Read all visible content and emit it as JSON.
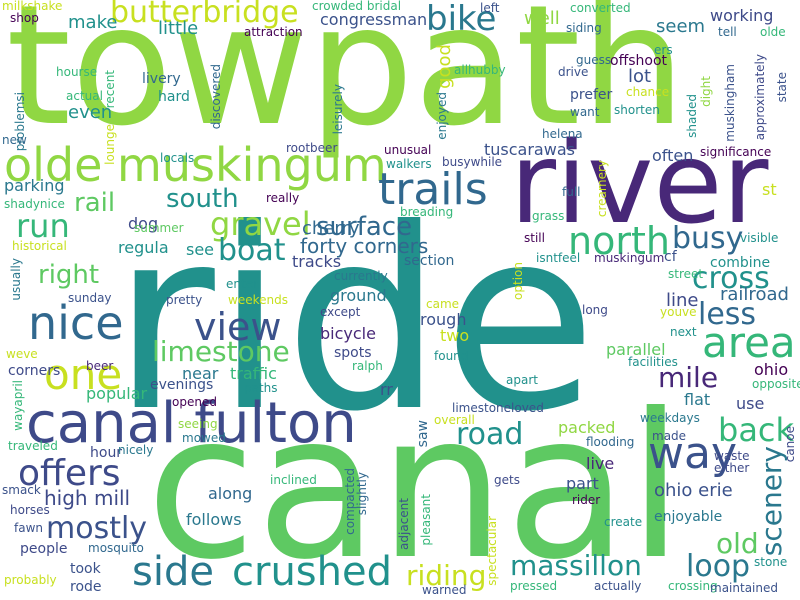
{
  "palette": {
    "purple": "#440154",
    "indigo": "#3b528b",
    "blue": "#31688e",
    "teal": "#21918c",
    "green": "#35b779",
    "lime": "#90d743",
    "yellow": "#c8e020"
  },
  "words": [
    {
      "text": "towpath",
      "color": "#90d743",
      "vertical": false
    },
    {
      "text": "ride",
      "color": "#21918c",
      "vertical": false
    },
    {
      "text": "canal",
      "color": "#5ec962",
      "vertical": false
    },
    {
      "text": "river",
      "color": "#482878",
      "vertical": false
    },
    {
      "text": "canal fulton",
      "color": "#3e4a89",
      "vertical": false
    },
    {
      "text": "olde muskingum",
      "color": "#90d743",
      "vertical": false
    },
    {
      "text": "trails",
      "color": "#31688e",
      "vertical": false
    },
    {
      "text": "butterbridge",
      "color": "#c8e020",
      "vertical": false
    },
    {
      "text": "bike",
      "color": "#2a788e",
      "vertical": false
    },
    {
      "text": "north",
      "color": "#35b779",
      "vertical": false
    },
    {
      "text": "nice",
      "color": "#31688e",
      "vertical": false
    },
    {
      "text": "view",
      "color": "#3b528b",
      "vertical": false
    },
    {
      "text": "area",
      "color": "#35b779",
      "vertical": false
    },
    {
      "text": "one",
      "color": "#c8e020",
      "vertical": false
    },
    {
      "text": "way",
      "color": "#3b528b",
      "vertical": false
    },
    {
      "text": "offers",
      "color": "#3e4a89",
      "vertical": false
    },
    {
      "text": "side",
      "color": "#2a788e",
      "vertical": false
    },
    {
      "text": "crushed",
      "color": "#21918c",
      "vertical": false
    },
    {
      "text": "back",
      "color": "#35b779",
      "vertical": false
    },
    {
      "text": "gravel",
      "color": "#90d743",
      "vertical": false
    },
    {
      "text": "south",
      "color": "#21918c",
      "vertical": false
    },
    {
      "text": "run",
      "color": "#35b779",
      "vertical": false
    },
    {
      "text": "rail",
      "color": "#5ec962",
      "vertical": false
    },
    {
      "text": "right",
      "color": "#5ec962",
      "vertical": false
    },
    {
      "text": "boat",
      "color": "#21918c",
      "vertical": false
    },
    {
      "text": "surface",
      "color": "#31688e",
      "vertical": false
    },
    {
      "text": "busy",
      "color": "#31688e",
      "vertical": false
    },
    {
      "text": "cross",
      "color": "#21918c",
      "vertical": false
    },
    {
      "text": "limestone",
      "color": "#5ec962",
      "vertical": false
    },
    {
      "text": "less",
      "color": "#31688e",
      "vertical": false
    },
    {
      "text": "mile",
      "color": "#482878",
      "vertical": false
    },
    {
      "text": "mostly",
      "color": "#3b528b",
      "vertical": false
    },
    {
      "text": "loop",
      "color": "#2a788e",
      "vertical": false
    },
    {
      "text": "road",
      "color": "#21918c",
      "vertical": false
    },
    {
      "text": "massillon",
      "color": "#21918c",
      "vertical": false
    },
    {
      "text": "riding",
      "color": "#c8e020",
      "vertical": false
    },
    {
      "text": "old",
      "color": "#5ec962",
      "vertical": false
    },
    {
      "text": "scenery",
      "color": "#2a788e",
      "vertical": true
    },
    {
      "text": "high mill",
      "color": "#3e4a89",
      "vertical": false
    },
    {
      "text": "forty corners",
      "color": "#31688e",
      "vertical": false
    },
    {
      "text": "ohio erie",
      "color": "#3b528b",
      "vertical": false
    },
    {
      "text": "cherry",
      "color": "#31688e",
      "vertical": false
    },
    {
      "text": "railroad",
      "color": "#31688e",
      "vertical": false
    },
    {
      "text": "tuscarawas",
      "color": "#3b528b",
      "vertical": false
    },
    {
      "text": "congressman",
      "color": "#3b528b",
      "vertical": false
    },
    {
      "text": "working",
      "color": "#3e4a89",
      "vertical": false
    },
    {
      "text": "offshoot",
      "color": "#440154",
      "vertical": false
    },
    {
      "text": "seem",
      "color": "#2a788e",
      "vertical": false
    },
    {
      "text": "often",
      "color": "#3b528b",
      "vertical": false
    },
    {
      "text": "lot",
      "color": "#3b528b",
      "vertical": false
    },
    {
      "text": "good",
      "color": "#c8e020",
      "vertical": true
    },
    {
      "text": "well",
      "color": "#90d743",
      "vertical": false
    },
    {
      "text": "little",
      "color": "#21918c",
      "vertical": false
    },
    {
      "text": "make",
      "color": "#21918c",
      "vertical": false
    },
    {
      "text": "even",
      "color": "#21918c",
      "vertical": false
    },
    {
      "text": "parking",
      "color": "#2a788e",
      "vertical": false
    },
    {
      "text": "dog",
      "color": "#3e4a89",
      "vertical": false
    },
    {
      "text": "regula",
      "color": "#21918c",
      "vertical": false
    },
    {
      "text": "see",
      "color": "#21918c",
      "vertical": false
    },
    {
      "text": "tracks",
      "color": "#3e4a89",
      "vertical": false
    },
    {
      "text": "section",
      "color": "#31688e",
      "vertical": false
    },
    {
      "text": "ground",
      "color": "#2a788e",
      "vertical": false
    },
    {
      "text": "rough",
      "color": "#3b528b",
      "vertical": false
    },
    {
      "text": "two",
      "color": "#c8e020",
      "vertical": false
    },
    {
      "text": "line",
      "color": "#3e4a89",
      "vertical": false
    },
    {
      "text": "parallel",
      "color": "#5ec962",
      "vertical": false
    },
    {
      "text": "ohio",
      "color": "#440154",
      "vertical": false
    },
    {
      "text": "flat",
      "color": "#2a788e",
      "vertical": false
    },
    {
      "text": "use",
      "color": "#3e4a89",
      "vertical": false
    },
    {
      "text": "live",
      "color": "#482878",
      "vertical": false
    },
    {
      "text": "part",
      "color": "#3b528b",
      "vertical": false
    },
    {
      "text": "packed",
      "color": "#90d743",
      "vertical": false
    },
    {
      "text": "along",
      "color": "#31688e",
      "vertical": false
    },
    {
      "text": "follows",
      "color": "#2a788e",
      "vertical": false
    },
    {
      "text": "people",
      "color": "#3e4a89",
      "vertical": false
    },
    {
      "text": "took",
      "color": "#3b528b",
      "vertical": false
    },
    {
      "text": "rode",
      "color": "#3b528b",
      "vertical": false
    },
    {
      "text": "hour",
      "color": "#3e4a89",
      "vertical": false
    },
    {
      "text": "enjoyable",
      "color": "#2a788e",
      "vertical": false
    },
    {
      "text": "bicycle",
      "color": "#482878",
      "vertical": false
    },
    {
      "text": "near",
      "color": "#2a788e",
      "vertical": false
    },
    {
      "text": "traffic",
      "color": "#35b779",
      "vertical": false
    },
    {
      "text": "popular",
      "color": "#35b779",
      "vertical": false
    },
    {
      "text": "evenings",
      "color": "#3b528b",
      "vertical": false
    },
    {
      "text": "saw",
      "color": "#31688e",
      "vertical": true
    },
    {
      "text": "rr",
      "color": "#3b528b",
      "vertical": false
    },
    {
      "text": "corners",
      "color": "#3e4a89",
      "vertical": false
    },
    {
      "text": "spots",
      "color": "#3e4a89",
      "vertical": false
    },
    {
      "text": "combine",
      "color": "#21918c",
      "vertical": false
    },
    {
      "text": "cf",
      "color": "#3b528b",
      "vertical": false
    },
    {
      "text": "milkshake",
      "color": "#c8e020",
      "vertical": false
    },
    {
      "text": "shop",
      "color": "#440154",
      "vertical": false
    },
    {
      "text": "hourse",
      "color": "#35b779",
      "vertical": false
    },
    {
      "text": "recent",
      "color": "#35b779",
      "vertical": true
    },
    {
      "text": "problemsi",
      "color": "#2a788e",
      "vertical": true
    },
    {
      "text": "new",
      "color": "#31688e",
      "vertical": false
    },
    {
      "text": "lounge",
      "color": "#c8e020",
      "vertical": true
    },
    {
      "text": "actual",
      "color": "#35b779",
      "vertical": false
    },
    {
      "text": "livery",
      "color": "#31688e",
      "vertical": false
    },
    {
      "text": "hard",
      "color": "#21918c",
      "vertical": false
    },
    {
      "text": "discovered",
      "color": "#31688e",
      "vertical": true
    },
    {
      "text": "attraction",
      "color": "#440154",
      "vertical": false
    },
    {
      "text": "crowded bridal",
      "color": "#35b779",
      "vertical": false
    },
    {
      "text": "leisurely",
      "color": "#2a788e",
      "vertical": true
    },
    {
      "text": "rootbeer",
      "color": "#3e4a89",
      "vertical": false
    },
    {
      "text": "shadynice",
      "color": "#35b779",
      "vertical": false
    },
    {
      "text": "locals",
      "color": "#21918c",
      "vertical": false
    },
    {
      "text": "really",
      "color": "#440154",
      "vertical": false
    },
    {
      "text": "summer",
      "color": "#5ec962",
      "vertical": false
    },
    {
      "text": "historical",
      "color": "#c8e020",
      "vertical": false
    },
    {
      "text": "usually",
      "color": "#2a788e",
      "vertical": true
    },
    {
      "text": "sunday",
      "color": "#3b528b",
      "vertical": false
    },
    {
      "text": "weve",
      "color": "#c8e020",
      "vertical": false
    },
    {
      "text": "beer",
      "color": "#482878",
      "vertical": false
    },
    {
      "text": "wayapril",
      "color": "#35b779",
      "vertical": true
    },
    {
      "text": "traveled",
      "color": "#35b779",
      "vertical": false
    },
    {
      "text": "smack",
      "color": "#3b528b",
      "vertical": false
    },
    {
      "text": "horses",
      "color": "#3e4a89",
      "vertical": false
    },
    {
      "text": "fawn",
      "color": "#3b528b",
      "vertical": false
    },
    {
      "text": "mosquito",
      "color": "#31688e",
      "vertical": false
    },
    {
      "text": "probably",
      "color": "#c8e020",
      "vertical": false
    },
    {
      "text": "pretty",
      "color": "#3b528b",
      "vertical": false
    },
    {
      "text": "weekends",
      "color": "#c8e020",
      "vertical": false
    },
    {
      "text": "enter",
      "color": "#21918c",
      "vertical": false
    },
    {
      "text": "currently",
      "color": "#2a788e",
      "vertical": false
    },
    {
      "text": "except",
      "color": "#3e4a89",
      "vertical": false
    },
    {
      "text": "ralph",
      "color": "#35b779",
      "vertical": false
    },
    {
      "text": "opened",
      "color": "#440154",
      "vertical": false
    },
    {
      "text": "paths",
      "color": "#21918c",
      "vertical": false
    },
    {
      "text": "seeing",
      "color": "#90d743",
      "vertical": false
    },
    {
      "text": "mowed",
      "color": "#2a788e",
      "vertical": false
    },
    {
      "text": "nicely",
      "color": "#2a788e",
      "vertical": false
    },
    {
      "text": "inclined",
      "color": "#35b779",
      "vertical": false
    },
    {
      "text": "compacted",
      "color": "#31688e",
      "vertical": true
    },
    {
      "text": "slightly",
      "color": "#31688e",
      "vertical": true
    },
    {
      "text": "adjacent",
      "color": "#3b528b",
      "vertical": true
    },
    {
      "text": "pleasant",
      "color": "#35b779",
      "vertical": true
    },
    {
      "text": "warned",
      "color": "#3b528b",
      "vertical": false
    },
    {
      "text": "limestoneloved",
      "color": "#3b528b",
      "vertical": false
    },
    {
      "text": "overall",
      "color": "#c8e020",
      "vertical": false
    },
    {
      "text": "found",
      "color": "#21918c",
      "vertical": false
    },
    {
      "text": "gets",
      "color": "#3e4a89",
      "vertical": false
    },
    {
      "text": "spectacular",
      "color": "#c8e020",
      "vertical": true
    },
    {
      "text": "pressed",
      "color": "#35b779",
      "vertical": false
    },
    {
      "text": "actually",
      "color": "#3b528b",
      "vertical": false
    },
    {
      "text": "crossing",
      "color": "#35b779",
      "vertical": false
    },
    {
      "text": "maintained",
      "color": "#3b528b",
      "vertical": false
    },
    {
      "text": "stone",
      "color": "#21918c",
      "vertical": false
    },
    {
      "text": "canoe",
      "color": "#3e4a89",
      "vertical": true
    },
    {
      "text": "either",
      "color": "#3e4a89",
      "vertical": false
    },
    {
      "text": "waste",
      "color": "#3e4a89",
      "vertical": false
    },
    {
      "text": "made",
      "color": "#3b528b",
      "vertical": false
    },
    {
      "text": "weekdays",
      "color": "#2a788e",
      "vertical": false
    },
    {
      "text": "flooding",
      "color": "#31688e",
      "vertical": false
    },
    {
      "text": "rider",
      "color": "#440154",
      "vertical": false
    },
    {
      "text": "create",
      "color": "#21918c",
      "vertical": false
    },
    {
      "text": "apart",
      "color": "#21918c",
      "vertical": false
    },
    {
      "text": "opposite",
      "color": "#35b779",
      "vertical": false
    },
    {
      "text": "facilities",
      "color": "#21918c",
      "vertical": false
    },
    {
      "text": "next",
      "color": "#21918c",
      "vertical": false
    },
    {
      "text": "youve",
      "color": "#c8e020",
      "vertical": false
    },
    {
      "text": "long",
      "color": "#3e4a89",
      "vertical": false
    },
    {
      "text": "option",
      "color": "#c8e020",
      "vertical": true
    },
    {
      "text": "came",
      "color": "#c8e020",
      "vertical": false
    },
    {
      "text": "street",
      "color": "#35b779",
      "vertical": false
    },
    {
      "text": "visible",
      "color": "#21918c",
      "vertical": false
    },
    {
      "text": "isntfeel",
      "color": "#21918c",
      "vertical": false
    },
    {
      "text": "muskingum",
      "color": "#482878",
      "vertical": false
    },
    {
      "text": "still",
      "color": "#440154",
      "vertical": false
    },
    {
      "text": "grass",
      "color": "#35b779",
      "vertical": false
    },
    {
      "text": "breading",
      "color": "#35b779",
      "vertical": false
    },
    {
      "text": "full",
      "color": "#31688e",
      "vertical": false
    },
    {
      "text": "st",
      "color": "#c8e020",
      "vertical": false
    },
    {
      "text": "creamery",
      "color": "#c8e020",
      "vertical": true
    },
    {
      "text": "significance",
      "color": "#440154",
      "vertical": false
    },
    {
      "text": "busywhile",
      "color": "#3e4a89",
      "vertical": false
    },
    {
      "text": "walkers",
      "color": "#21918c",
      "vertical": false
    },
    {
      "text": "unusual",
      "color": "#440154",
      "vertical": false
    },
    {
      "text": "helena",
      "color": "#31688e",
      "vertical": false
    },
    {
      "text": "enjoyed",
      "color": "#2a788e",
      "vertical": true
    },
    {
      "text": "allhubby",
      "color": "#35b779",
      "vertical": false
    },
    {
      "text": "want",
      "color": "#31688e",
      "vertical": false
    },
    {
      "text": "prefer",
      "color": "#3b528b",
      "vertical": false
    },
    {
      "text": "drive",
      "color": "#3b528b",
      "vertical": false
    },
    {
      "text": "guess",
      "color": "#31688e",
      "vertical": false
    },
    {
      "text": "siding",
      "color": "#31688e",
      "vertical": false
    },
    {
      "text": "left",
      "color": "#3b528b",
      "vertical": false
    },
    {
      "text": "converted",
      "color": "#35b779",
      "vertical": false
    },
    {
      "text": "ers",
      "color": "#21918c",
      "vertical": false
    },
    {
      "text": "tell",
      "color": "#31688e",
      "vertical": false
    },
    {
      "text": "olde",
      "color": "#35b779",
      "vertical": false
    },
    {
      "text": "chance",
      "color": "#c8e020",
      "vertical": false
    },
    {
      "text": "shorten",
      "color": "#21918c",
      "vertical": false
    },
    {
      "text": "dight",
      "color": "#90d743",
      "vertical": true
    },
    {
      "text": "muskingham",
      "color": "#3b528b",
      "vertical": true
    },
    {
      "text": "shaded",
      "color": "#21918c",
      "vertical": true
    },
    {
      "text": "approximately",
      "color": "#3e4a89",
      "vertical": true
    },
    {
      "text": "state",
      "color": "#3b528b",
      "vertical": true
    }
  ]
}
